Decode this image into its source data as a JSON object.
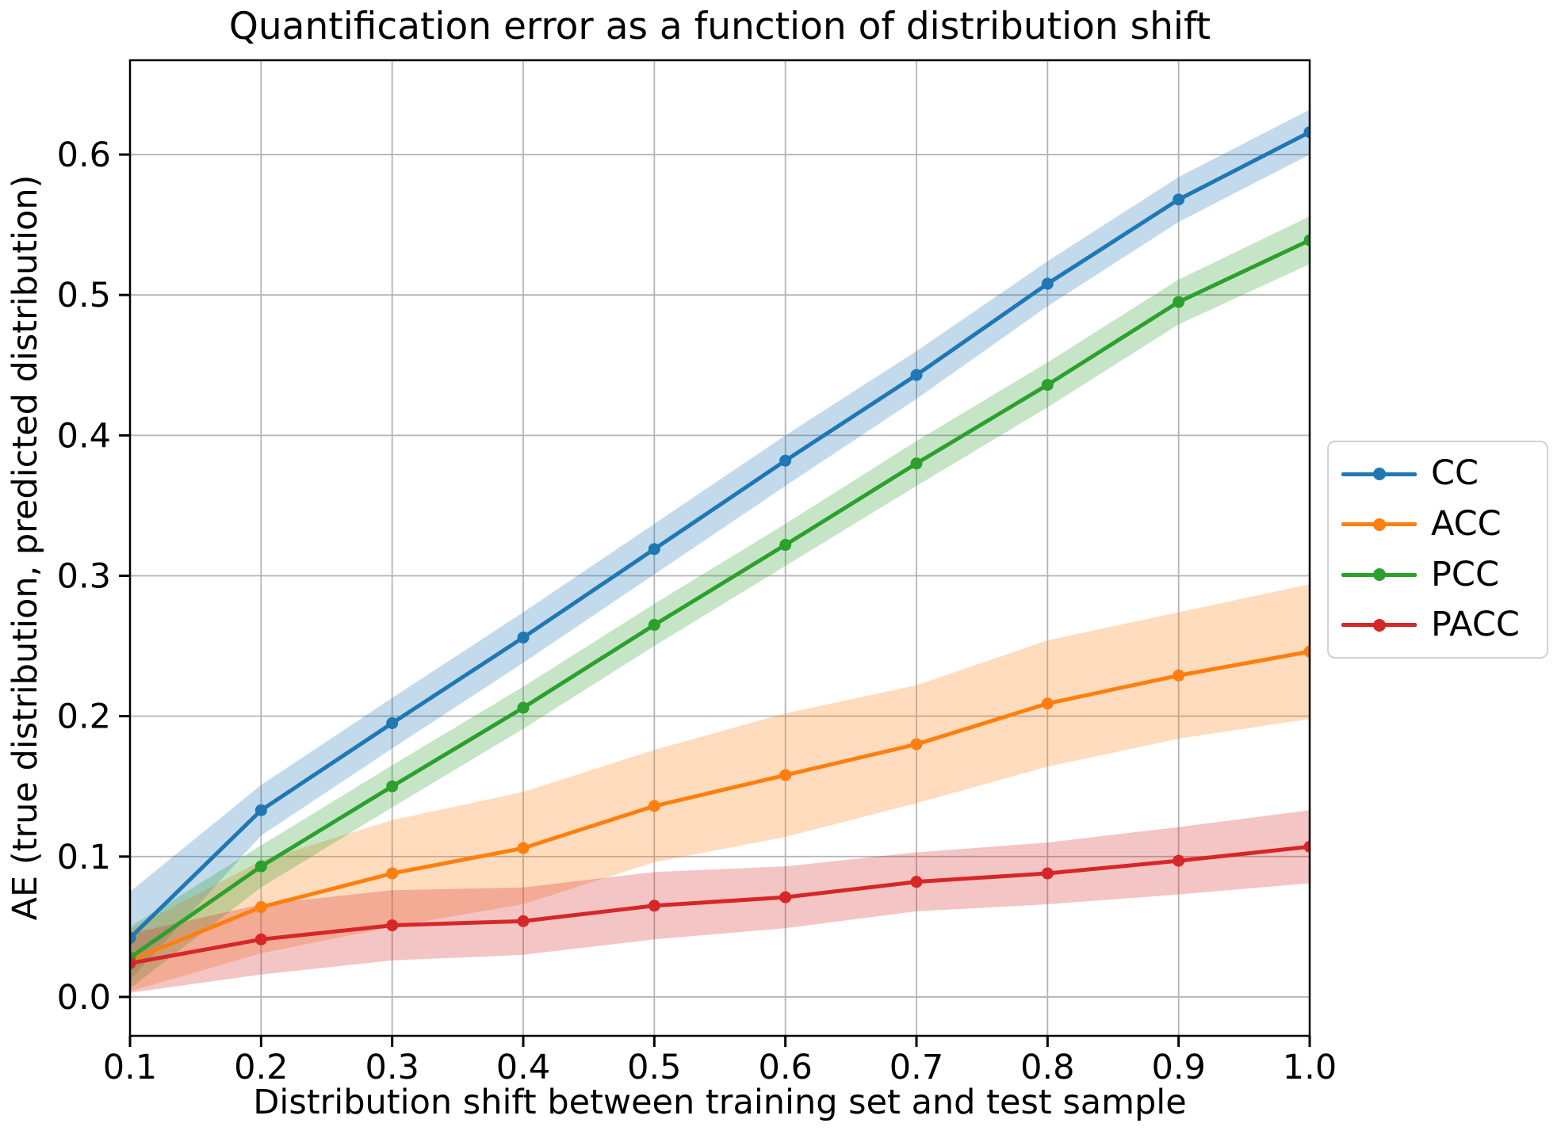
{
  "chart_data": {
    "type": "line",
    "title": "Quantification error as a function of distribution shift",
    "xlabel": "Distribution shift between training set and test sample",
    "ylabel": "AE (true distribution, predicted distribution)",
    "x": [
      0.1,
      0.2,
      0.3,
      0.4,
      0.5,
      0.6,
      0.7,
      0.8,
      0.9,
      1.0
    ],
    "xticks": [
      0.1,
      0.2,
      0.3,
      0.4,
      0.5,
      0.6,
      0.7,
      0.8,
      0.9,
      1.0
    ],
    "xtick_labels": [
      "0.1",
      "0.2",
      "0.3",
      "0.4",
      "0.5",
      "0.6",
      "0.7",
      "0.8",
      "0.9",
      "1.0"
    ],
    "yticks": [
      0.0,
      0.1,
      0.2,
      0.3,
      0.4,
      0.5,
      0.6
    ],
    "ytick_labels": [
      "0.0",
      "0.1",
      "0.2",
      "0.3",
      "0.4",
      "0.5",
      "0.6"
    ],
    "xlim": [
      0.1,
      1.0
    ],
    "ylim": [
      -0.0277,
      0.6672
    ],
    "grid": true,
    "grid_color": "#b4b4b4",
    "band_opacity": 0.27,
    "legend_position": "right of axes, vertically centered",
    "series": [
      {
        "name": "CC",
        "color": "#1f77b4",
        "values": [
          0.042,
          0.133,
          0.195,
          0.256,
          0.319,
          0.382,
          0.443,
          0.508,
          0.568,
          0.616
        ],
        "band_lower": [
          0.012,
          0.115,
          0.177,
          0.238,
          0.301,
          0.364,
          0.426,
          0.492,
          0.552,
          0.6
        ],
        "band_upper": [
          0.075,
          0.151,
          0.213,
          0.274,
          0.337,
          0.4,
          0.46,
          0.524,
          0.584,
          0.632
        ]
      },
      {
        "name": "ACC",
        "color": "#ff7f0e",
        "values": [
          0.026,
          0.064,
          0.088,
          0.106,
          0.136,
          0.158,
          0.18,
          0.209,
          0.229,
          0.246
        ],
        "band_lower": [
          0.004,
          0.031,
          0.05,
          0.066,
          0.096,
          0.114,
          0.138,
          0.164,
          0.184,
          0.198
        ],
        "band_upper": [
          0.048,
          0.097,
          0.126,
          0.146,
          0.176,
          0.202,
          0.222,
          0.254,
          0.274,
          0.294
        ]
      },
      {
        "name": "PCC",
        "color": "#2ca02c",
        "values": [
          0.028,
          0.093,
          0.15,
          0.206,
          0.265,
          0.322,
          0.38,
          0.436,
          0.495,
          0.539
        ],
        "band_lower": [
          0.006,
          0.078,
          0.135,
          0.191,
          0.25,
          0.307,
          0.364,
          0.42,
          0.479,
          0.522
        ],
        "band_upper": [
          0.05,
          0.108,
          0.165,
          0.221,
          0.28,
          0.337,
          0.396,
          0.452,
          0.511,
          0.556
        ]
      },
      {
        "name": "PACC",
        "color": "#d62728",
        "values": [
          0.024,
          0.041,
          0.051,
          0.054,
          0.065,
          0.071,
          0.082,
          0.088,
          0.097,
          0.107
        ],
        "band_lower": [
          0.003,
          0.016,
          0.026,
          0.03,
          0.041,
          0.049,
          0.061,
          0.066,
          0.073,
          0.081
        ],
        "band_upper": [
          0.045,
          0.066,
          0.076,
          0.078,
          0.089,
          0.093,
          0.103,
          0.11,
          0.121,
          0.133
        ]
      }
    ]
  }
}
